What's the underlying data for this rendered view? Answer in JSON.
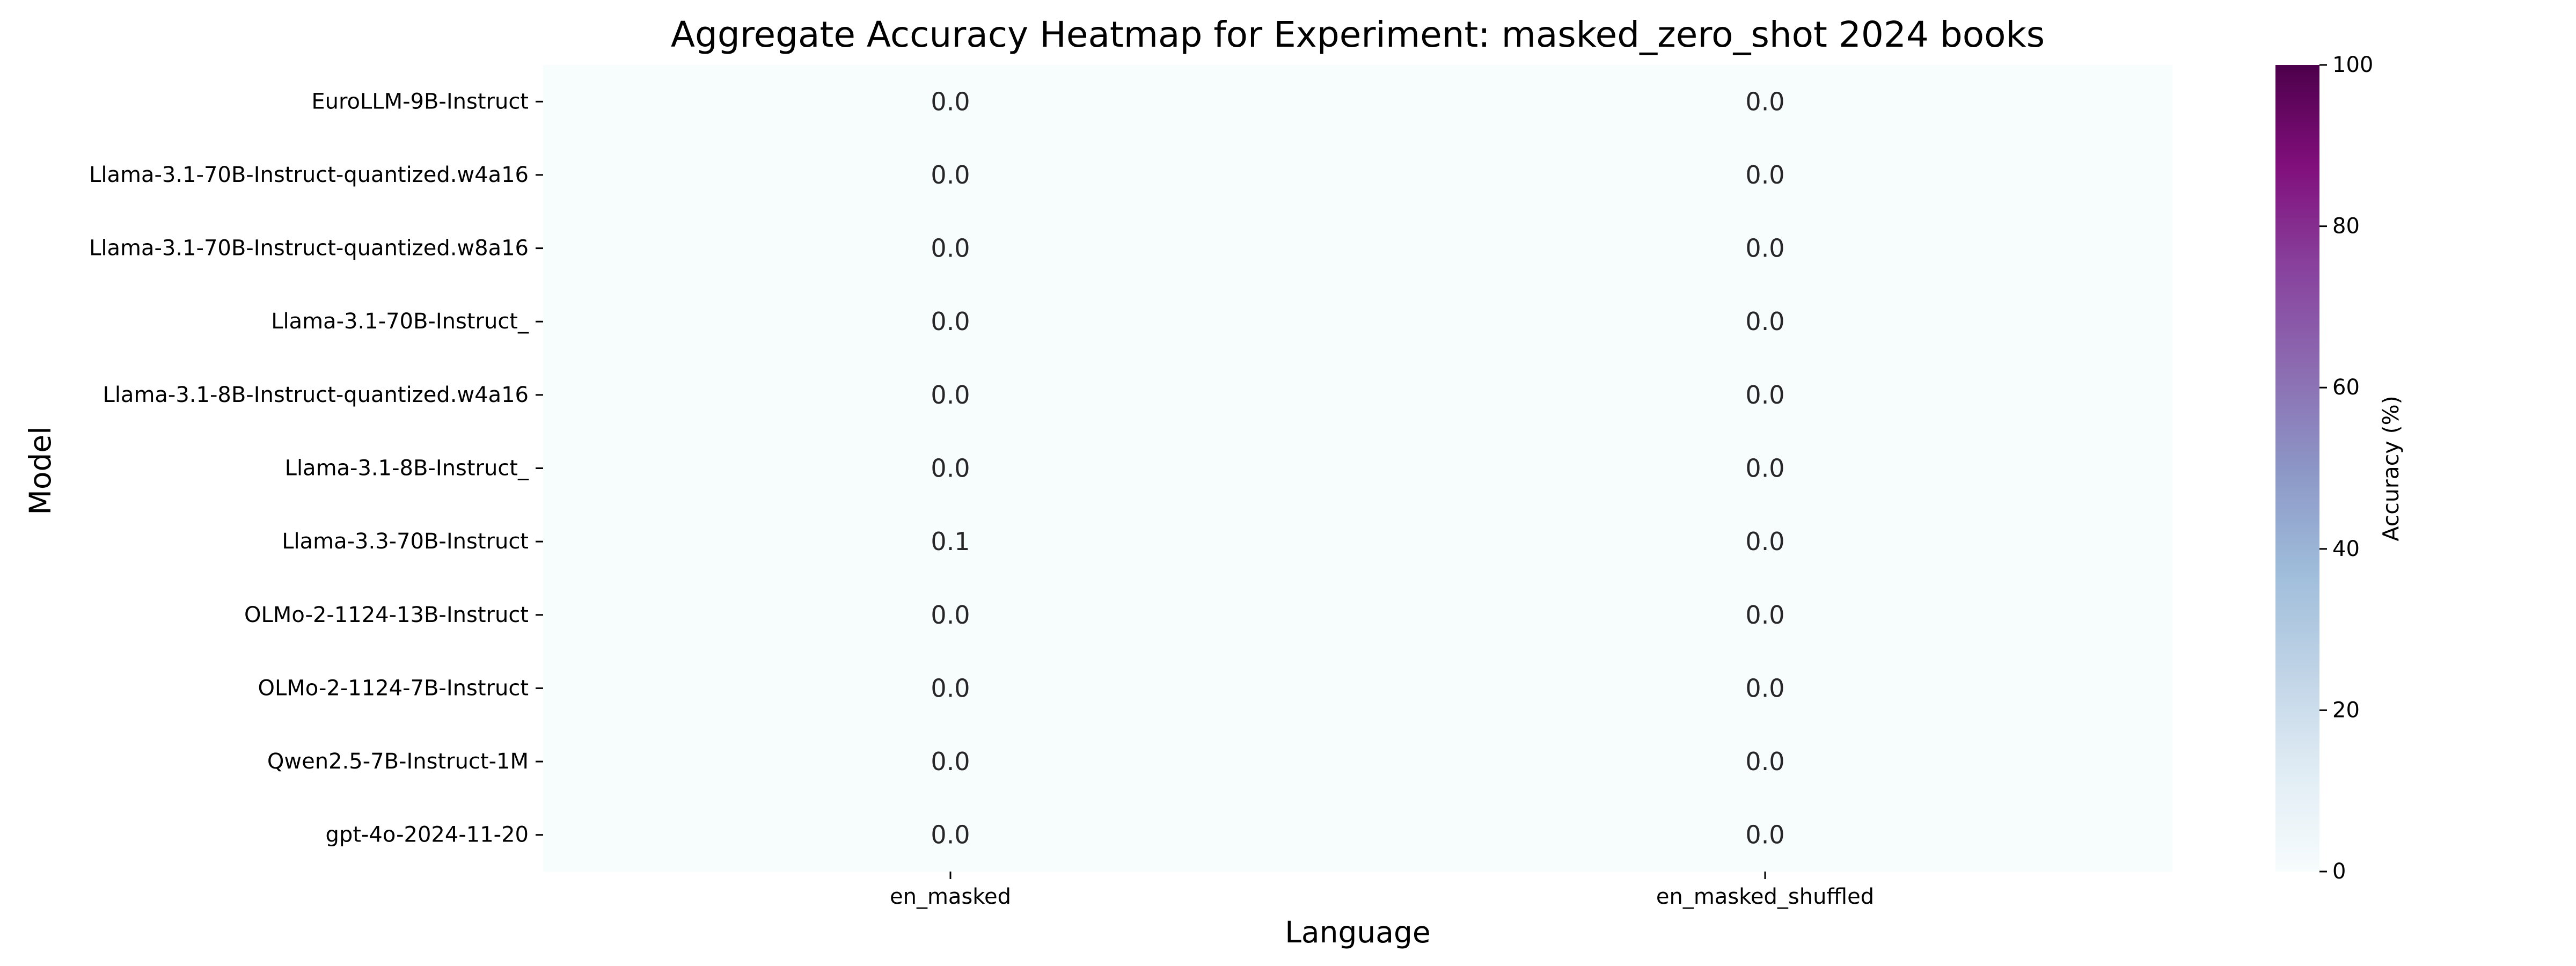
{
  "chart_data": {
    "type": "heatmap",
    "title": "Aggregate Accuracy Heatmap for Experiment: masked_zero_shot 2024 books",
    "xlabel": "Language",
    "ylabel": "Model",
    "x_categories": [
      "en_masked",
      "en_masked_shuffled"
    ],
    "y_categories": [
      "EuroLLM-9B-Instruct",
      "Llama-3.1-70B-Instruct-quantized.w4a16",
      "Llama-3.1-70B-Instruct-quantized.w8a16",
      "Llama-3.1-70B-Instruct_",
      "Llama-3.1-8B-Instruct-quantized.w4a16",
      "Llama-3.1-8B-Instruct_",
      "Llama-3.3-70B-Instruct",
      "OLMo-2-1124-13B-Instruct",
      "OLMo-2-1124-7B-Instruct",
      "Qwen2.5-7B-Instruct-1M",
      "gpt-4o-2024-11-20"
    ],
    "values": [
      [
        0.0,
        0.0
      ],
      [
        0.0,
        0.0
      ],
      [
        0.0,
        0.0
      ],
      [
        0.0,
        0.0
      ],
      [
        0.0,
        0.0
      ],
      [
        0.0,
        0.0
      ],
      [
        0.1,
        0.0
      ],
      [
        0.0,
        0.0
      ],
      [
        0.0,
        0.0
      ],
      [
        0.0,
        0.0
      ],
      [
        0.0,
        0.0
      ]
    ],
    "colorbar": {
      "label": "Accuracy (%)",
      "range": [
        0,
        100
      ],
      "ticks": [
        0,
        20,
        40,
        60,
        80,
        100
      ],
      "colormap": "BuPu",
      "stops": [
        "#f7fcfd",
        "#e0ecf4",
        "#bfd3e6",
        "#9ebcda",
        "#8c96c6",
        "#8c6bb1",
        "#88419d",
        "#810f7c",
        "#4d004b"
      ]
    },
    "grid": false,
    "annotations": true
  }
}
